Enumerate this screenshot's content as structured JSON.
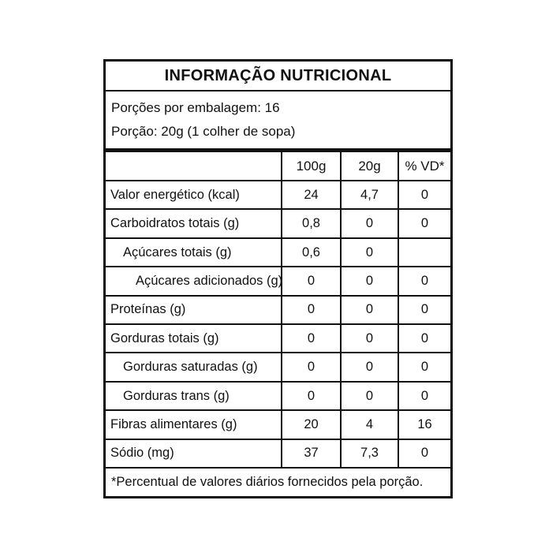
{
  "title": "INFORMAÇÃO NUTRICIONAL",
  "serving": {
    "servings_per_package": "Porções por embalagem: 16",
    "serving_size": "Porção: 20g (1 colher de sopa)"
  },
  "table": {
    "headers": {
      "col_label": "",
      "col_100g": "100g",
      "col_20g": "20g",
      "col_vd": "% VD*"
    },
    "rows": [
      {
        "label": "Valor energético (kcal)",
        "v100": "24",
        "v20": "4,7",
        "vd": "0"
      },
      {
        "label": "Carboidratos totais (g)",
        "v100": "0,8",
        "v20": "0",
        "vd": "0"
      },
      {
        "label": "Açúcares totais (g)",
        "v100": "0,6",
        "v20": "0",
        "vd": ""
      },
      {
        "label": "Açúcares adicionados (g)",
        "v100": "0",
        "v20": "0",
        "vd": "0"
      },
      {
        "label": "Proteínas (g)",
        "v100": "0",
        "v20": "0",
        "vd": "0"
      },
      {
        "label": "Gorduras totais (g)",
        "v100": "0",
        "v20": "0",
        "vd": "0"
      },
      {
        "label": "Gorduras saturadas (g)",
        "v100": "0",
        "v20": "0",
        "vd": "0"
      },
      {
        "label": "Gorduras trans (g)",
        "v100": "0",
        "v20": "0",
        "vd": "0"
      },
      {
        "label": "Fibras alimentares (g)",
        "v100": "20",
        "v20": "4",
        "vd": "16"
      },
      {
        "label": "Sódio (mg)",
        "v100": "37",
        "v20": "7,3",
        "vd": "0"
      }
    ]
  },
  "footnote": "*Percentual de valores diários fornecidos pela porção.",
  "colors": {
    "border": "#111111",
    "text": "#111111",
    "background": "#ffffff"
  }
}
